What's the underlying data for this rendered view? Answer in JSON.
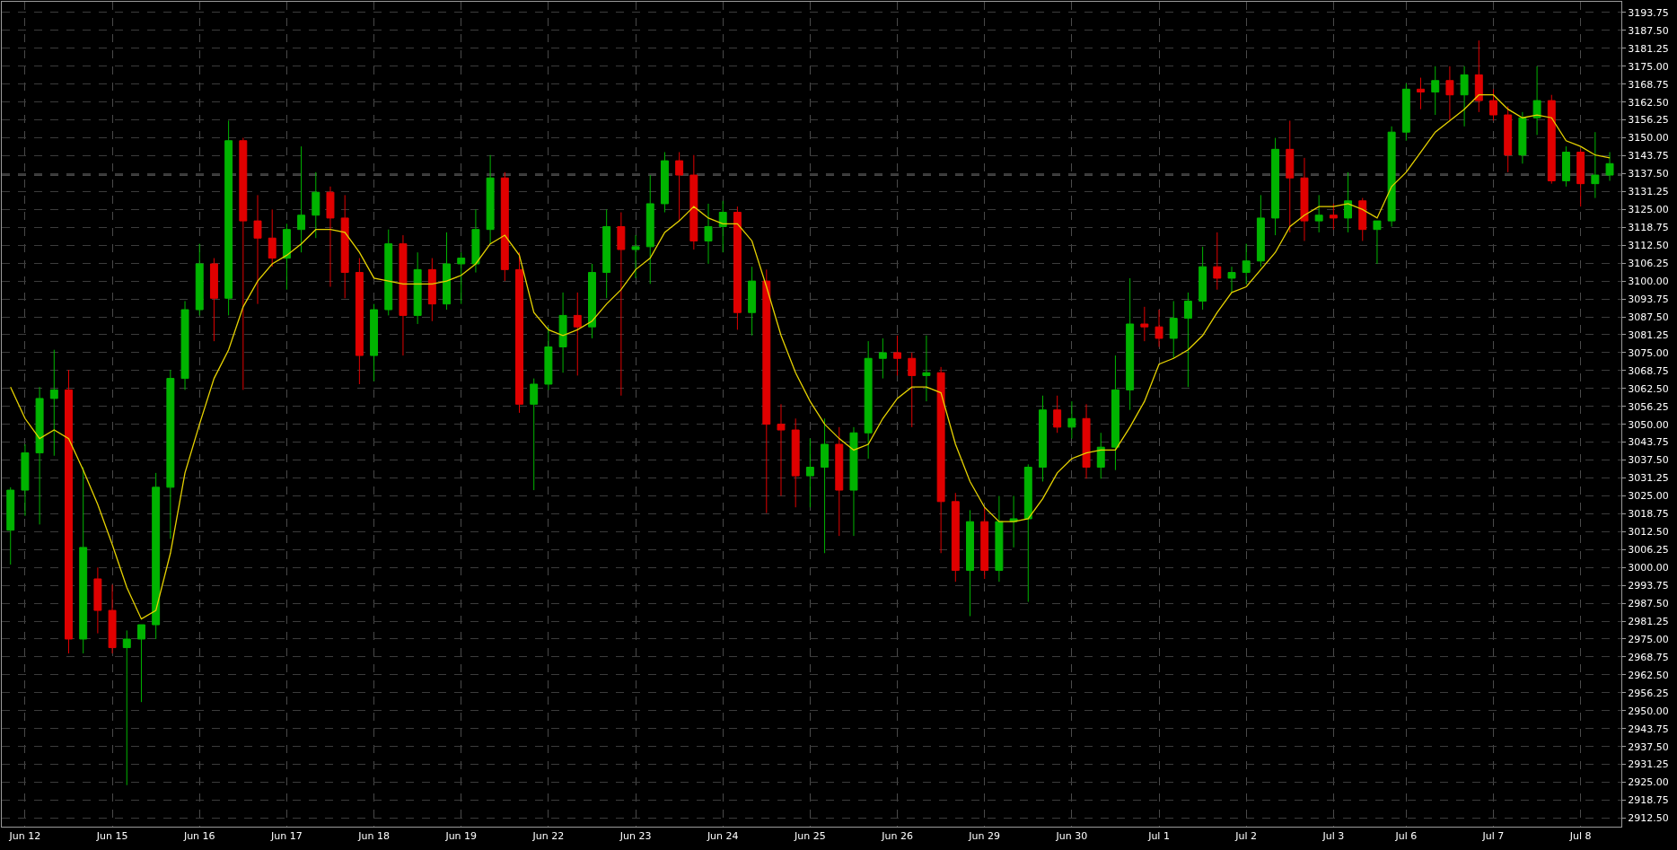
{
  "chart_data": {
    "type": "candlestick",
    "categories": [
      null,
      "Jun 12",
      null,
      null,
      null,
      null,
      null,
      "Jun 15",
      null,
      null,
      null,
      null,
      null,
      "Jun 16",
      null,
      null,
      null,
      null,
      null,
      "Jun 17",
      null,
      null,
      null,
      null,
      null,
      "Jun 18",
      null,
      null,
      null,
      null,
      null,
      "Jun 19",
      null,
      null,
      null,
      null,
      null,
      "Jun 22",
      null,
      null,
      null,
      null,
      null,
      "Jun 23",
      null,
      null,
      null,
      null,
      null,
      "Jun 24",
      null,
      null,
      null,
      null,
      null,
      "Jun 25",
      null,
      null,
      null,
      null,
      null,
      "Jun 26",
      null,
      null,
      null,
      null,
      null,
      "Jun 29",
      null,
      null,
      null,
      null,
      null,
      "Jun 30",
      null,
      null,
      null,
      null,
      null,
      "Jul 1",
      null,
      null,
      null,
      null,
      null,
      "Jul 2",
      null,
      null,
      null,
      null,
      null,
      "Jul 3",
      null,
      null,
      null,
      null,
      "Jul 6",
      null,
      null,
      null,
      null,
      null,
      "Jul 7",
      null,
      null,
      null,
      null,
      null,
      "Jul 8",
      null,
      null
    ],
    "ohlc": [
      [
        3013,
        3028,
        3001,
        3027
      ],
      [
        3027,
        3043,
        3018,
        3040
      ],
      [
        3040,
        3063,
        3015,
        3059
      ],
      [
        3059,
        3076,
        3039,
        3062
      ],
      [
        3062,
        3069,
        2970,
        2975
      ],
      [
        2975,
        3035,
        2970,
        3007
      ],
      [
        2996,
        3000,
        2977,
        2985
      ],
      [
        2985,
        2994,
        2970,
        2972
      ],
      [
        2972,
        2978,
        2924,
        2975
      ],
      [
        2975,
        2980,
        2953,
        2980
      ],
      [
        2980,
        3033,
        2975,
        3028
      ],
      [
        3028,
        3069,
        3010,
        3066
      ],
      [
        3066,
        3093,
        3062,
        3090
      ],
      [
        3090,
        3113,
        3088,
        3106
      ],
      [
        3106,
        3108,
        3079,
        3094
      ],
      [
        3094,
        3156,
        3088,
        3149
      ],
      [
        3149,
        3150,
        3062,
        3121
      ],
      [
        3121,
        3130,
        3092,
        3115
      ],
      [
        3115,
        3125,
        3105,
        3108
      ],
      [
        3108,
        3120,
        3097,
        3118
      ],
      [
        3118,
        3147,
        3110,
        3123
      ],
      [
        3123,
        3138,
        3115,
        3131
      ],
      [
        3131,
        3133,
        3098,
        3122
      ],
      [
        3122,
        3130,
        3094,
        3103
      ],
      [
        3103,
        3108,
        3064,
        3074
      ],
      [
        3074,
        3092,
        3065,
        3090
      ],
      [
        3090,
        3118,
        3088,
        3113
      ],
      [
        3113,
        3116,
        3074,
        3088
      ],
      [
        3088,
        3110,
        3085,
        3104
      ],
      [
        3104,
        3108,
        3086,
        3092
      ],
      [
        3092,
        3117,
        3090,
        3106
      ],
      [
        3106,
        3110,
        3092,
        3108
      ],
      [
        3106,
        3125,
        3103,
        3118
      ],
      [
        3118,
        3144,
        3113,
        3136
      ],
      [
        3136,
        3138,
        3100,
        3104
      ],
      [
        3104,
        3110,
        3054,
        3057
      ],
      [
        3057,
        3066,
        3027,
        3064
      ],
      [
        3064,
        3084,
        3062,
        3077
      ],
      [
        3077,
        3096,
        3068,
        3088
      ],
      [
        3088,
        3096,
        3067,
        3084
      ],
      [
        3084,
        3106,
        3080,
        3103
      ],
      [
        3103,
        3125,
        3094,
        3119
      ],
      [
        3119,
        3124,
        3060,
        3111
      ],
      [
        3111,
        3116,
        3101,
        3112
      ],
      [
        3112,
        3137,
        3099,
        3127
      ],
      [
        3127,
        3145,
        3124,
        3142
      ],
      [
        3142,
        3145,
        3121,
        3137
      ],
      [
        3137,
        3144,
        3111,
        3114
      ],
      [
        3114,
        3127,
        3106,
        3119
      ],
      [
        3119,
        3128,
        3110,
        3124
      ],
      [
        3124,
        3126,
        3083,
        3089
      ],
      [
        3089,
        3105,
        3081,
        3100
      ],
      [
        3100,
        3104,
        3019,
        3050
      ],
      [
        3050,
        3057,
        3025,
        3048
      ],
      [
        3048,
        3052,
        3021,
        3032
      ],
      [
        3032,
        3045,
        3021,
        3035
      ],
      [
        3035,
        3052,
        3005,
        3043
      ],
      [
        3043,
        3049,
        3011,
        3027
      ],
      [
        3027,
        3049,
        3011,
        3047
      ],
      [
        3047,
        3079,
        3038,
        3073
      ],
      [
        3073,
        3080,
        3066,
        3075
      ],
      [
        3075,
        3081,
        3067,
        3073
      ],
      [
        3073,
        3075,
        3049,
        3067
      ],
      [
        3067,
        3081,
        3058,
        3068
      ],
      [
        3068,
        3070,
        3005,
        3023
      ],
      [
        3023,
        3026,
        2995,
        2999
      ],
      [
        2999,
        3020,
        2983,
        3016
      ],
      [
        3016,
        3021,
        2996,
        2999
      ],
      [
        2999,
        3025,
        2995,
        3016
      ],
      [
        3016,
        3025,
        3007,
        3017
      ],
      [
        3017,
        3036,
        2988,
        3035
      ],
      [
        3035,
        3060,
        3030,
        3055
      ],
      [
        3055,
        3060,
        3047,
        3049
      ],
      [
        3049,
        3058,
        3045,
        3052
      ],
      [
        3052,
        3057,
        3031,
        3035
      ],
      [
        3035,
        3047,
        3031,
        3042
      ],
      [
        3042,
        3074,
        3034,
        3062
      ],
      [
        3062,
        3101,
        3055,
        3085
      ],
      [
        3085,
        3091,
        3079,
        3084
      ],
      [
        3084,
        3090,
        3077,
        3080
      ],
      [
        3080,
        3093,
        3073,
        3087
      ],
      [
        3087,
        3096,
        3063,
        3093
      ],
      [
        3093,
        3112,
        3090,
        3105
      ],
      [
        3105,
        3117,
        3097,
        3101
      ],
      [
        3101,
        3105,
        3096,
        3103
      ],
      [
        3103,
        3113,
        3099,
        3107
      ],
      [
        3107,
        3130,
        3105,
        3122
      ],
      [
        3122,
        3150,
        3116,
        3146
      ],
      [
        3146,
        3156,
        3117,
        3136
      ],
      [
        3136,
        3143,
        3114,
        3121
      ],
      [
        3121,
        3130,
        3117,
        3123
      ],
      [
        3123,
        3127,
        3118,
        3122
      ],
      [
        3122,
        3138,
        3117,
        3128
      ],
      [
        3128,
        3129,
        3114,
        3118
      ],
      [
        3118,
        3121,
        3106,
        3121
      ],
      [
        3121,
        3154,
        3119,
        3152
      ],
      [
        3152,
        3169,
        3149,
        3167
      ],
      [
        3167,
        3171,
        3160,
        3166
      ],
      [
        3166,
        3175,
        3158,
        3170
      ],
      [
        3170,
        3175,
        3156,
        3165
      ],
      [
        3165,
        3175,
        3154,
        3172
      ],
      [
        3172,
        3184,
        3159,
        3163
      ],
      [
        3163,
        3167,
        3156,
        3158
      ],
      [
        3158,
        3161,
        3138,
        3144
      ],
      [
        3144,
        3159,
        3141,
        3157
      ],
      [
        3157,
        3175,
        3151,
        3163
      ],
      [
        3163,
        3165,
        3134,
        3135
      ],
      [
        3135,
        3147,
        3133,
        3145
      ],
      [
        3145,
        3146,
        3126,
        3134
      ],
      [
        3134,
        3152,
        3129,
        3137
      ],
      [
        3137,
        3145,
        3135,
        3141
      ]
    ],
    "colors": [
      "#00b400",
      "#00b400",
      "#00b400",
      "#00b400",
      "#e00000",
      "#00b400",
      "#e00000",
      "#e00000",
      "#00b400",
      "#00b400",
      "#00b400",
      "#00b400",
      "#00b400",
      "#00b400",
      "#e00000",
      "#00b400",
      "#e00000",
      "#e00000",
      "#e00000",
      "#00b400",
      "#00b400",
      "#00b400",
      "#e00000",
      "#e00000",
      "#e00000",
      "#00b400",
      "#00b400",
      "#e00000",
      "#00b400",
      "#e00000",
      "#00b400",
      "#00b400",
      "#00b400",
      "#00b400",
      "#e00000",
      "#e00000",
      "#00b400",
      "#00b400",
      "#00b400",
      "#e00000",
      "#00b400",
      "#00b400",
      "#e00000",
      "#00b400",
      "#00b400",
      "#00b400",
      "#e00000",
      "#e00000",
      "#00b400",
      "#00b400",
      "#e00000",
      "#00b400",
      "#e00000",
      "#e00000",
      "#e00000",
      "#00b400",
      "#00b400",
      "#e00000",
      "#00b400",
      "#00b400",
      "#00b400",
      "#e00000",
      "#e00000",
      "#00b400",
      "#e00000",
      "#e00000",
      "#00b400",
      "#e00000",
      "#00b400",
      "#00b400",
      "#00b400",
      "#00b400",
      "#e00000",
      "#00b400",
      "#e00000",
      "#00b400",
      "#00b400",
      "#00b400",
      "#e00000",
      "#e00000",
      "#00b400",
      "#00b400",
      "#00b400",
      "#e00000",
      "#00b400",
      "#00b400",
      "#00b400",
      "#00b400",
      "#e00000",
      "#e00000",
      "#00b400",
      "#e00000",
      "#00b400",
      "#e00000",
      "#00b400",
      "#00b400",
      "#00b400",
      "#e00000",
      "#00b400",
      "#e00000",
      "#00b400",
      "#e00000",
      "#e00000",
      "#e00000",
      "#00b400",
      "#00b400",
      "#e00000",
      "#00b400",
      "#e00000",
      "#00b400",
      "#00b400"
    ],
    "series": [
      {
        "type": "line",
        "color": "#e6d200",
        "values": [
          3063,
          3052,
          3045,
          3048,
          3045,
          3034,
          3022,
          3008,
          2993,
          2982,
          2985,
          3005,
          3033,
          3050,
          3066,
          3076,
          3091,
          3100,
          3106,
          3109,
          3113,
          3118,
          3118,
          3117,
          3110,
          3101,
          3100,
          3099,
          3099,
          3099,
          3100,
          3102,
          3106,
          3113,
          3116,
          3109,
          3089,
          3083,
          3081,
          3083,
          3086,
          3092,
          3097,
          3104,
          3108,
          3117,
          3121,
          3126,
          3122,
          3120,
          3120,
          3114,
          3098,
          3081,
          3068,
          3058,
          3050,
          3045,
          3041,
          3043,
          3052,
          3059,
          3063,
          3063,
          3061,
          3043,
          3030,
          3021,
          3016,
          3016,
          3017,
          3024,
          3033,
          3038,
          3040,
          3041,
          3041,
          3049,
          3058,
          3071,
          3073,
          3076,
          3081,
          3089,
          3096,
          3098,
          3104,
          3110,
          3119,
          3123,
          3126,
          3126,
          3127,
          3125,
          3122,
          3133,
          3138,
          3145,
          3152,
          3156,
          3160,
          3165,
          3165,
          3160,
          3157,
          3158,
          3157,
          3149,
          3147,
          3144,
          3143
        ]
      }
    ],
    "ylim": [
      2909.5,
      3197.5
    ],
    "yticks": [
      {
        "value": 2912.5,
        "label": "2912.50"
      },
      {
        "value": 2918.75,
        "label": "2918.75"
      },
      {
        "value": 2925,
        "label": "2925.00"
      },
      {
        "value": 2931.25,
        "label": "2931.25"
      },
      {
        "value": 2937.5,
        "label": "2937.50"
      },
      {
        "value": 2943.75,
        "label": "2943.75"
      },
      {
        "value": 2950,
        "label": "2950.00"
      },
      {
        "value": 2956.25,
        "label": "2956.25"
      },
      {
        "value": 2962.5,
        "label": "2962.50"
      },
      {
        "value": 2968.75,
        "label": "2968.75"
      },
      {
        "value": 2975,
        "label": "2975.00"
      },
      {
        "value": 2981.25,
        "label": "2981.25"
      },
      {
        "value": 2987.5,
        "label": "2987.50"
      },
      {
        "value": 2993.75,
        "label": "2993.75"
      },
      {
        "value": 3000,
        "label": "3000.00"
      },
      {
        "value": 3006.25,
        "label": "3006.25"
      },
      {
        "value": 3012.5,
        "label": "3012.50"
      },
      {
        "value": 3018.75,
        "label": "3018.75"
      },
      {
        "value": 3025,
        "label": "3025.00"
      },
      {
        "value": 3031.25,
        "label": "3031.25"
      },
      {
        "value": 3037.5,
        "label": "3037.50"
      },
      {
        "value": 3043.75,
        "label": "3043.75"
      },
      {
        "value": 3050,
        "label": "3050.00"
      },
      {
        "value": 3056.25,
        "label": "3056.25"
      },
      {
        "value": 3062.5,
        "label": "3062.50"
      },
      {
        "value": 3068.75,
        "label": "3068.75"
      },
      {
        "value": 3075,
        "label": "3075.00"
      },
      {
        "value": 3081.25,
        "label": "3081.25"
      },
      {
        "value": 3087.5,
        "label": "3087.50"
      },
      {
        "value": 3093.75,
        "label": "3093.75"
      },
      {
        "value": 3100,
        "label": "3100.00"
      },
      {
        "value": 3106.25,
        "label": "3106.25"
      },
      {
        "value": 3112.5,
        "label": "3112.50"
      },
      {
        "value": 3118.75,
        "label": "3118.75"
      },
      {
        "value": 3125,
        "label": "3125.00"
      },
      {
        "value": 3131.25,
        "label": "3131.25"
      },
      {
        "value": 3137.5,
        "label": "3137.50"
      },
      {
        "value": 3143.75,
        "label": "3143.75"
      },
      {
        "value": 3150,
        "label": "3150.00"
      },
      {
        "value": 3156.25,
        "label": "3156.25"
      },
      {
        "value": 3162.5,
        "label": "3162.50"
      },
      {
        "value": 3168.75,
        "label": "3168.75"
      },
      {
        "value": 3175,
        "label": "3175.00"
      },
      {
        "value": 3181.25,
        "label": "3181.25"
      },
      {
        "value": 3187.5,
        "label": "3187.50"
      },
      {
        "value": 3193.75,
        "label": "3193.75"
      }
    ],
    "ref_lines": [
      {
        "axis": "y",
        "value": 3137,
        "color": "#808080",
        "line_style": "dashed"
      }
    ],
    "grid": true
  }
}
